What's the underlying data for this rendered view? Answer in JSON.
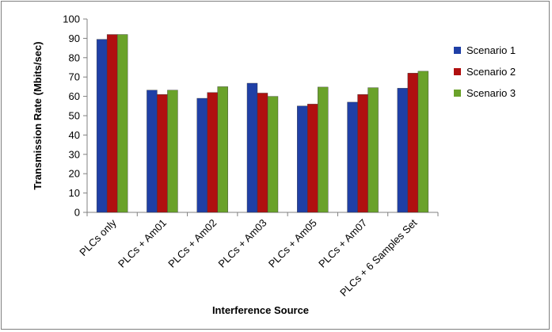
{
  "chart_data": {
    "type": "bar",
    "title": "",
    "xlabel": "Interference Source",
    "ylabel": "Transmission Rate (Mbits/sec)",
    "ylim": [
      0,
      100
    ],
    "yticks": [
      0,
      10,
      20,
      30,
      40,
      50,
      60,
      70,
      80,
      90,
      100
    ],
    "grid": false,
    "legend_position": "right",
    "categories": [
      "PLCs only",
      "PLCs + Am01",
      "PLCs + Am02",
      "PLCs + Am03",
      "PLCs + Am05",
      "PLCs + Am07",
      "PLCs + 6 Samples Set"
    ],
    "series": [
      {
        "name": "Scenario 1",
        "color": "#1f3fa6",
        "values": [
          89.5,
          63.2,
          59.0,
          66.8,
          55.0,
          57.0,
          64.2
        ]
      },
      {
        "name": "Scenario 2",
        "color": "#b01010",
        "values": [
          92.0,
          61.0,
          62.0,
          61.7,
          56.0,
          61.0,
          72.0
        ]
      },
      {
        "name": "Scenario 3",
        "color": "#6aa22a",
        "values": [
          92.0,
          63.2,
          65.0,
          60.0,
          64.8,
          64.5,
          73.0
        ]
      }
    ]
  }
}
